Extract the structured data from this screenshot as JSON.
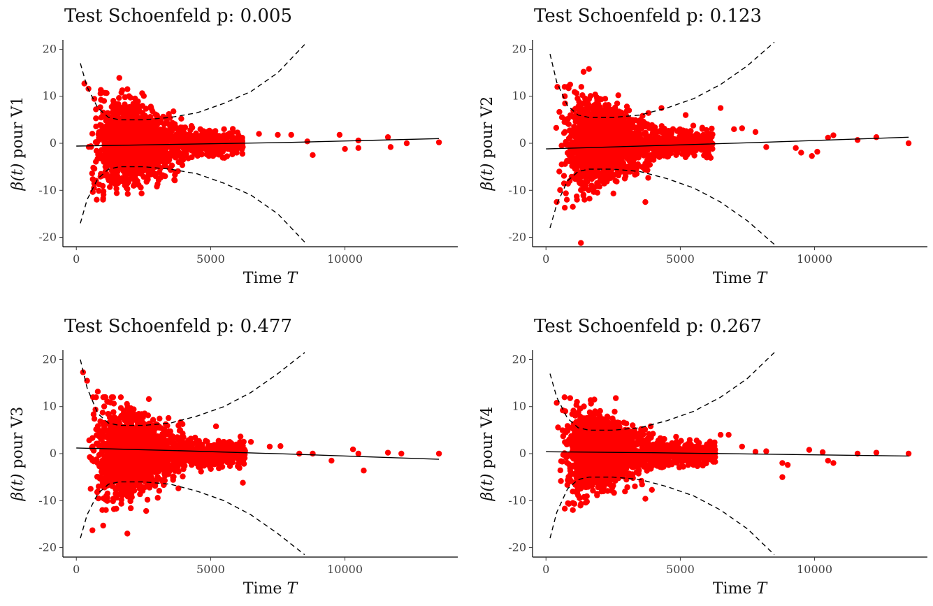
{
  "chart_data": [
    {
      "type": "scatter",
      "title": "Test Schoenfeld p: 0.005",
      "xlabel_text": "Time ",
      "xlabel_var": "T",
      "ylabel_head": "β(t)",
      "ylabel_tail": " pour V1",
      "xlim": [
        -500,
        14200
      ],
      "ylim": [
        -22,
        22
      ],
      "xticks": [
        0,
        5000,
        10000
      ],
      "yticks": [
        -20,
        -10,
        0,
        10,
        20
      ],
      "colors": {
        "points": "#ff0000",
        "line": "#000000"
      },
      "fit_line": {
        "x": [
          0,
          4000,
          8000,
          13500
        ],
        "y": [
          -0.6,
          -0.2,
          0.2,
          1.0
        ]
      },
      "band_upper": {
        "x": [
          150,
          400,
          800,
          1200,
          1600,
          2500,
          3500,
          4500,
          5500,
          6500,
          7500,
          8500
        ],
        "y": [
          17,
          12,
          7.5,
          5.5,
          5,
          5,
          5.5,
          6.5,
          8.5,
          11,
          15,
          21
        ]
      },
      "band_lower": {
        "x": [
          150,
          400,
          800,
          1200,
          1600,
          2500,
          3500,
          4500,
          5500,
          6500,
          7500,
          8500
        ],
        "y": [
          -17,
          -12,
          -7.5,
          -5.5,
          -5,
          -5,
          -5.5,
          -6.5,
          -8.5,
          -11,
          -15,
          -21
        ]
      },
      "highlights": [
        [
          300,
          12.7
        ],
        [
          1600,
          13.9
        ],
        [
          900,
          10.6
        ],
        [
          1000,
          -11.7
        ],
        [
          2400,
          -9.4
        ],
        [
          3000,
          -9.2
        ],
        [
          5500,
          3
        ],
        [
          6000,
          2.3
        ],
        [
          6800,
          2
        ],
        [
          7500,
          1.8
        ],
        [
          8000,
          1.8
        ],
        [
          8600,
          0.4
        ],
        [
          8800,
          -2.5
        ],
        [
          9800,
          1.8
        ],
        [
          10000,
          -1.2
        ],
        [
          10500,
          0.6
        ],
        [
          10500,
          -1
        ],
        [
          11600,
          1.3
        ],
        [
          11700,
          -0.8
        ],
        [
          12300,
          0
        ],
        [
          13500,
          0.2
        ]
      ],
      "cloud": {
        "n": 2000,
        "seed": 11,
        "xmode": 1900,
        "xmin": 250,
        "xmax": 6200,
        "amp": 4.2,
        "clip": 12
      }
    },
    {
      "type": "scatter",
      "title": "Test Schoenfeld p: 0.123",
      "xlabel_text": "Time ",
      "xlabel_var": "T",
      "ylabel_head": "β(t)",
      "ylabel_tail": " pour V2",
      "xlim": [
        -500,
        14200
      ],
      "ylim": [
        -22,
        22
      ],
      "xticks": [
        0,
        5000,
        10000
      ],
      "yticks": [
        -20,
        -10,
        0,
        10,
        20
      ],
      "colors": {
        "points": "#ff0000",
        "line": "#000000"
      },
      "fit_line": {
        "x": [
          0,
          4000,
          8000,
          13500
        ],
        "y": [
          -1.2,
          -0.5,
          0.2,
          1.3
        ]
      },
      "band_upper": {
        "x": [
          150,
          400,
          800,
          1200,
          1600,
          2500,
          3500,
          4500,
          5500,
          6500,
          7500,
          8500
        ],
        "y": [
          19,
          13,
          8,
          6,
          5.5,
          5.5,
          6,
          7.5,
          9.5,
          12.5,
          16.5,
          21.5
        ]
      },
      "band_lower": {
        "x": [
          150,
          400,
          800,
          1200,
          1600,
          2500,
          3500,
          4500,
          5500,
          6500,
          7500,
          8500
        ],
        "y": [
          -18,
          -13,
          -8,
          -6,
          -5.5,
          -5.5,
          -6,
          -7.5,
          -9.5,
          -12.5,
          -16.5,
          -21.5
        ]
      },
      "highlights": [
        [
          1600,
          15.8
        ],
        [
          1400,
          15.2
        ],
        [
          900,
          12.5
        ],
        [
          700,
          10
        ],
        [
          1300,
          -21.2
        ],
        [
          400,
          -12.5
        ],
        [
          700,
          -13.7
        ],
        [
          1000,
          -13.5
        ],
        [
          3700,
          -12.5
        ],
        [
          4300,
          7.5
        ],
        [
          5200,
          6
        ],
        [
          6500,
          7.5
        ],
        [
          7000,
          3
        ],
        [
          7300,
          3.2
        ],
        [
          7800,
          2.4
        ],
        [
          8200,
          -0.8
        ],
        [
          9300,
          -1
        ],
        [
          9500,
          -2
        ],
        [
          9900,
          -2.7
        ],
        [
          10100,
          -1.8
        ],
        [
          10500,
          1.2
        ],
        [
          10700,
          1.7
        ],
        [
          11600,
          0.7
        ],
        [
          12300,
          1.3
        ],
        [
          13500,
          0
        ]
      ],
      "cloud": {
        "n": 1900,
        "seed": 22,
        "xmode": 1900,
        "xmin": 250,
        "xmax": 6200,
        "amp": 4.5,
        "clip": 12
      }
    },
    {
      "type": "scatter",
      "title": "Test Schoenfeld p: 0.477",
      "xlabel_text": "Time ",
      "xlabel_var": "T",
      "ylabel_head": "β(t)",
      "ylabel_tail": " pour V3",
      "xlim": [
        -500,
        14200
      ],
      "ylim": [
        -22,
        22
      ],
      "xticks": [
        0,
        5000,
        10000
      ],
      "yticks": [
        -20,
        -10,
        0,
        10,
        20
      ],
      "colors": {
        "points": "#ff0000",
        "line": "#000000"
      },
      "fit_line": {
        "x": [
          0,
          4000,
          8000,
          13500
        ],
        "y": [
          1.2,
          0.6,
          -0.1,
          -1.2
        ]
      },
      "band_upper": {
        "x": [
          150,
          400,
          800,
          1200,
          1600,
          2500,
          3500,
          4500,
          5500,
          6500,
          7500,
          8500
        ],
        "y": [
          20,
          14,
          8.5,
          6.5,
          6,
          6,
          6.5,
          8,
          10,
          13,
          17,
          21.5
        ]
      },
      "band_lower": {
        "x": [
          150,
          400,
          800,
          1200,
          1600,
          2500,
          3500,
          4500,
          5500,
          6500,
          7500,
          8500
        ],
        "y": [
          -18,
          -13,
          -8.5,
          -6.5,
          -6,
          -6,
          -6.5,
          -8,
          -10,
          -13,
          -17,
          -21.5
        ]
      },
      "highlights": [
        [
          250,
          17.3
        ],
        [
          400,
          15.5
        ],
        [
          800,
          13.2
        ],
        [
          2700,
          11.6
        ],
        [
          600,
          -16.3
        ],
        [
          1900,
          -17
        ],
        [
          1000,
          -15.3
        ],
        [
          1400,
          -11.8
        ],
        [
          2600,
          -12.2
        ],
        [
          5200,
          5.8
        ],
        [
          6200,
          -6.2
        ],
        [
          6500,
          2.5
        ],
        [
          7200,
          1.5
        ],
        [
          7600,
          1.6
        ],
        [
          8300,
          0
        ],
        [
          8800,
          0
        ],
        [
          9500,
          -1.5
        ],
        [
          10300,
          0.9
        ],
        [
          10700,
          -3.6
        ],
        [
          10500,
          0
        ],
        [
          11600,
          0.2
        ],
        [
          12100,
          0
        ],
        [
          13500,
          0
        ]
      ],
      "cloud": {
        "n": 2200,
        "seed": 33,
        "xmode": 1900,
        "xmin": 250,
        "xmax": 6300,
        "amp": 4.4,
        "clip": 12
      }
    },
    {
      "type": "scatter",
      "title": "Test Schoenfeld p: 0.267",
      "xlabel_text": "Time ",
      "xlabel_var": "T",
      "ylabel_head": "β(t)",
      "ylabel_tail": " pour V4",
      "xlim": [
        -500,
        14200
      ],
      "ylim": [
        -22,
        22
      ],
      "xticks": [
        0,
        5000,
        10000
      ],
      "yticks": [
        -20,
        -10,
        0,
        10,
        20
      ],
      "colors": {
        "points": "#ff0000",
        "line": "#000000"
      },
      "fit_line": {
        "x": [
          0,
          4000,
          8000,
          13500
        ],
        "y": [
          0.4,
          0.2,
          -0.1,
          -0.5
        ]
      },
      "band_upper": {
        "x": [
          150,
          400,
          800,
          1200,
          1600,
          2500,
          3500,
          4500,
          5500,
          6500,
          7500,
          8500
        ],
        "y": [
          17,
          12,
          7.5,
          5.5,
          5,
          5,
          5.5,
          7,
          9,
          12,
          16,
          21.5
        ]
      },
      "band_lower": {
        "x": [
          150,
          400,
          800,
          1200,
          1600,
          2500,
          3500,
          4500,
          5500,
          6500,
          7500,
          8500
        ],
        "y": [
          -18,
          -12.5,
          -7.5,
          -5.5,
          -5,
          -5,
          -5.5,
          -7,
          -9,
          -12,
          -16,
          -21.5
        ]
      },
      "highlights": [
        [
          400,
          10.8
        ],
        [
          900,
          11.8
        ],
        [
          1800,
          11.5
        ],
        [
          2600,
          11.8
        ],
        [
          700,
          -11.7
        ],
        [
          1000,
          -10.5
        ],
        [
          3700,
          -9.6
        ],
        [
          6500,
          4
        ],
        [
          6800,
          4
        ],
        [
          7300,
          1.5
        ],
        [
          7800,
          0.4
        ],
        [
          8200,
          0.5
        ],
        [
          8800,
          -2
        ],
        [
          8800,
          -5
        ],
        [
          9000,
          -2.4
        ],
        [
          9800,
          0.8
        ],
        [
          10300,
          0.3
        ],
        [
          10500,
          -1.5
        ],
        [
          10700,
          -2
        ],
        [
          11600,
          0
        ],
        [
          12300,
          0.2
        ],
        [
          13500,
          0
        ]
      ],
      "cloud": {
        "n": 2000,
        "seed": 44,
        "xmode": 1900,
        "xmin": 250,
        "xmax": 6300,
        "amp": 4.0,
        "clip": 12
      }
    }
  ]
}
